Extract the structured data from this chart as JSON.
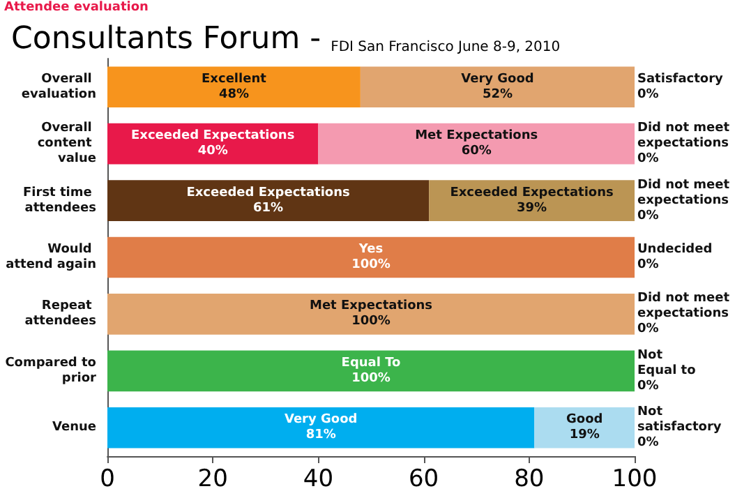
{
  "chart_data": {
    "type": "bar",
    "orientation": "horizontal",
    "stacked": true,
    "title": "Consultants Forum -",
    "subtitle": "FDI San Francisco June 8-9, 2010",
    "annotations": [
      "Attendee evaluation"
    ],
    "categories": [
      "Overall evaluation",
      "Overall content value",
      "First time attendees",
      "Would attend again",
      "Repeat attendees",
      "Compared to prior",
      "Venue"
    ],
    "series": [
      {
        "colors": [
          "#f7941d",
          "#e8194a",
          "#603514",
          "#e07d48",
          "#e1a56f",
          "#3cb44b",
          "#00aeef"
        ],
        "values": [
          48,
          40,
          61,
          100,
          100,
          100,
          81
        ],
        "value_labels": [
          "Excellent\n48%",
          "Exceeded Expectations\n40%",
          "Exceeded Expectations\n61%",
          "Yes\n100%",
          "Met Expectations\n100%",
          "Equal To\n100%",
          "Very Good\n81%"
        ]
      },
      {
        "colors": [
          "#e1a56f",
          "#f49ab0",
          "#bb9554",
          "#e07d48",
          "#e1a56f",
          "#3cb44b",
          "#abdcf0"
        ],
        "values": [
          52,
          60,
          39,
          0,
          0,
          0,
          19
        ],
        "value_labels": [
          "Very Good\n52%",
          "Met Expectations\n60%",
          "Exceeded Expectations\n39%",
          null,
          null,
          null,
          "Good\n19%"
        ]
      },
      {
        "colors": [
          "#e1a56f",
          "#f49ab0",
          "#bb9554",
          "#e07d48",
          "#e1a56f",
          "#3cb44b",
          "#abdcf0"
        ],
        "values": [
          0,
          0,
          0,
          0,
          0,
          0,
          0
        ],
        "value_labels": [
          "Satisfactory\n0%",
          "Did not meet\nexpectations\n0%",
          "Did not meet\nexpectations\n0%",
          "Undecided\n0%",
          "Did not meet\nexpectations\n0%",
          "Not\nEqual to\n0%",
          "Not\nsatisfactory\n0%"
        ]
      }
    ],
    "xlim": [
      0,
      100
    ],
    "xticks": [
      0,
      20,
      40,
      60,
      80,
      100
    ],
    "grid": false
  }
}
